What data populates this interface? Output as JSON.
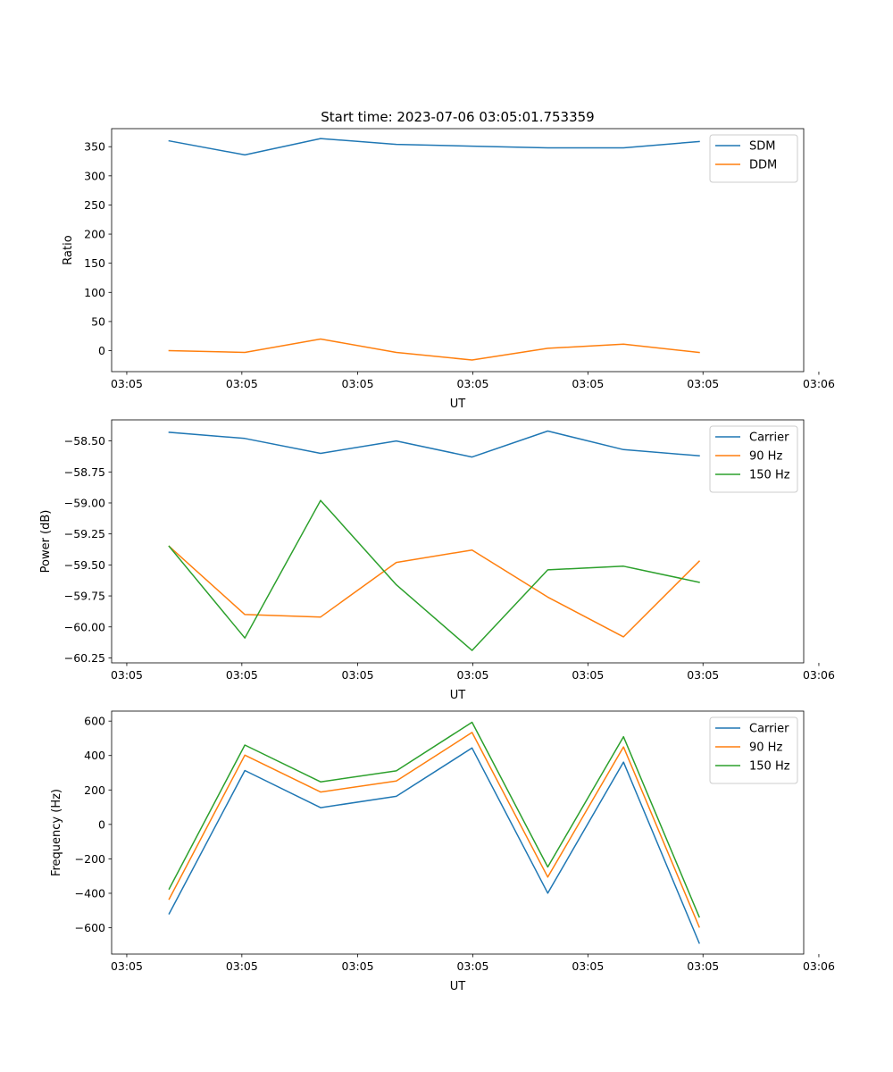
{
  "figure_title": "Start time: 2023-07-06 03:05:01.753359",
  "colors": {
    "c0": "#1f77b4",
    "c1": "#ff7f0e",
    "c2": "#2ca02c"
  },
  "chart_data": [
    {
      "type": "line",
      "title": "Start time: 2023-07-06 03:05:01.753359",
      "xlabel": "UT",
      "ylabel": "Ratio",
      "x": [
        1,
        2,
        3,
        4,
        5,
        6,
        7,
        8
      ],
      "xlim": [
        0.24,
        9.38
      ],
      "ylim": [
        -36,
        381
      ],
      "yticks": [
        0,
        50,
        100,
        150,
        200,
        250,
        300,
        350
      ],
      "ytick_labels": [
        "0",
        "50",
        "100",
        "150",
        "200",
        "250",
        "300",
        "350"
      ],
      "xticks": [
        0.44,
        1.96,
        3.49,
        5.01,
        6.53,
        8.05,
        9.58
      ],
      "xtick_labels": [
        "03:05",
        "03:05",
        "03:05",
        "03:05",
        "03:05",
        "03:05",
        "03:06"
      ],
      "legend_position": "top-right",
      "series": [
        {
          "name": "SDM",
          "color": "#1f77b4",
          "values": [
            360,
            336,
            364,
            354,
            351,
            348,
            348,
            359
          ]
        },
        {
          "name": "DDM",
          "color": "#ff7f0e",
          "values": [
            0,
            -3,
            20,
            -3,
            -16,
            4,
            11,
            -3
          ]
        }
      ]
    },
    {
      "type": "line",
      "title": "",
      "xlabel": "UT",
      "ylabel": "Power (dB)",
      "x": [
        1,
        2,
        3,
        4,
        5,
        6,
        7,
        8
      ],
      "xlim": [
        0.24,
        9.38
      ],
      "ylim": [
        -60.29,
        -58.33
      ],
      "yticks": [
        -60.25,
        -60.0,
        -59.75,
        -59.5,
        -59.25,
        -59.0,
        -58.75,
        -58.5
      ],
      "ytick_labels": [
        "−60.25",
        "−60.00",
        "−59.75",
        "−59.50",
        "−59.25",
        "−59.00",
        "−58.75",
        "−58.50"
      ],
      "xticks": [
        0.44,
        1.96,
        3.49,
        5.01,
        6.53,
        8.05,
        9.58
      ],
      "xtick_labels": [
        "03:05",
        "03:05",
        "03:05",
        "03:05",
        "03:05",
        "03:05",
        "03:06"
      ],
      "legend_position": "top-right",
      "series": [
        {
          "name": "Carrier",
          "color": "#1f77b4",
          "values": [
            -58.43,
            -58.48,
            -58.6,
            -58.5,
            -58.63,
            -58.42,
            -58.57,
            -58.62
          ]
        },
        {
          "name": "90 Hz",
          "color": "#ff7f0e",
          "values": [
            -59.35,
            -59.9,
            -59.92,
            -59.48,
            -59.38,
            -59.76,
            -60.08,
            -59.47
          ]
        },
        {
          "name": "150 Hz",
          "color": "#2ca02c",
          "values": [
            -59.35,
            -60.09,
            -58.98,
            -59.66,
            -60.19,
            -59.54,
            -59.51,
            -59.64
          ]
        }
      ]
    },
    {
      "type": "line",
      "title": "",
      "xlabel": "UT",
      "ylabel": "Frequency (Hz)",
      "x": [
        1,
        2,
        3,
        4,
        5,
        6,
        7,
        8
      ],
      "xlim": [
        0.24,
        9.38
      ],
      "ylim": [
        -753,
        658
      ],
      "yticks": [
        -600,
        -400,
        -200,
        0,
        200,
        400,
        600
      ],
      "ytick_labels": [
        "−600",
        "−400",
        "−200",
        "0",
        "200",
        "400",
        "600"
      ],
      "xticks": [
        0.44,
        1.96,
        3.49,
        5.01,
        6.53,
        8.05,
        9.58
      ],
      "xtick_labels": [
        "03:05",
        "03:05",
        "03:05",
        "03:05",
        "03:05",
        "03:05",
        "03:06"
      ],
      "legend_position": "top-right",
      "series": [
        {
          "name": "Carrier",
          "color": "#1f77b4",
          "values": [
            -519,
            313,
            97,
            163,
            444,
            -399,
            362,
            -689
          ]
        },
        {
          "name": "90 Hz",
          "color": "#ff7f0e",
          "values": [
            -434,
            402,
            188,
            252,
            534,
            -306,
            450,
            -596
          ]
        },
        {
          "name": "150 Hz",
          "color": "#2ca02c",
          "values": [
            -375,
            461,
            247,
            311,
            593,
            -247,
            509,
            -537
          ]
        }
      ]
    }
  ]
}
